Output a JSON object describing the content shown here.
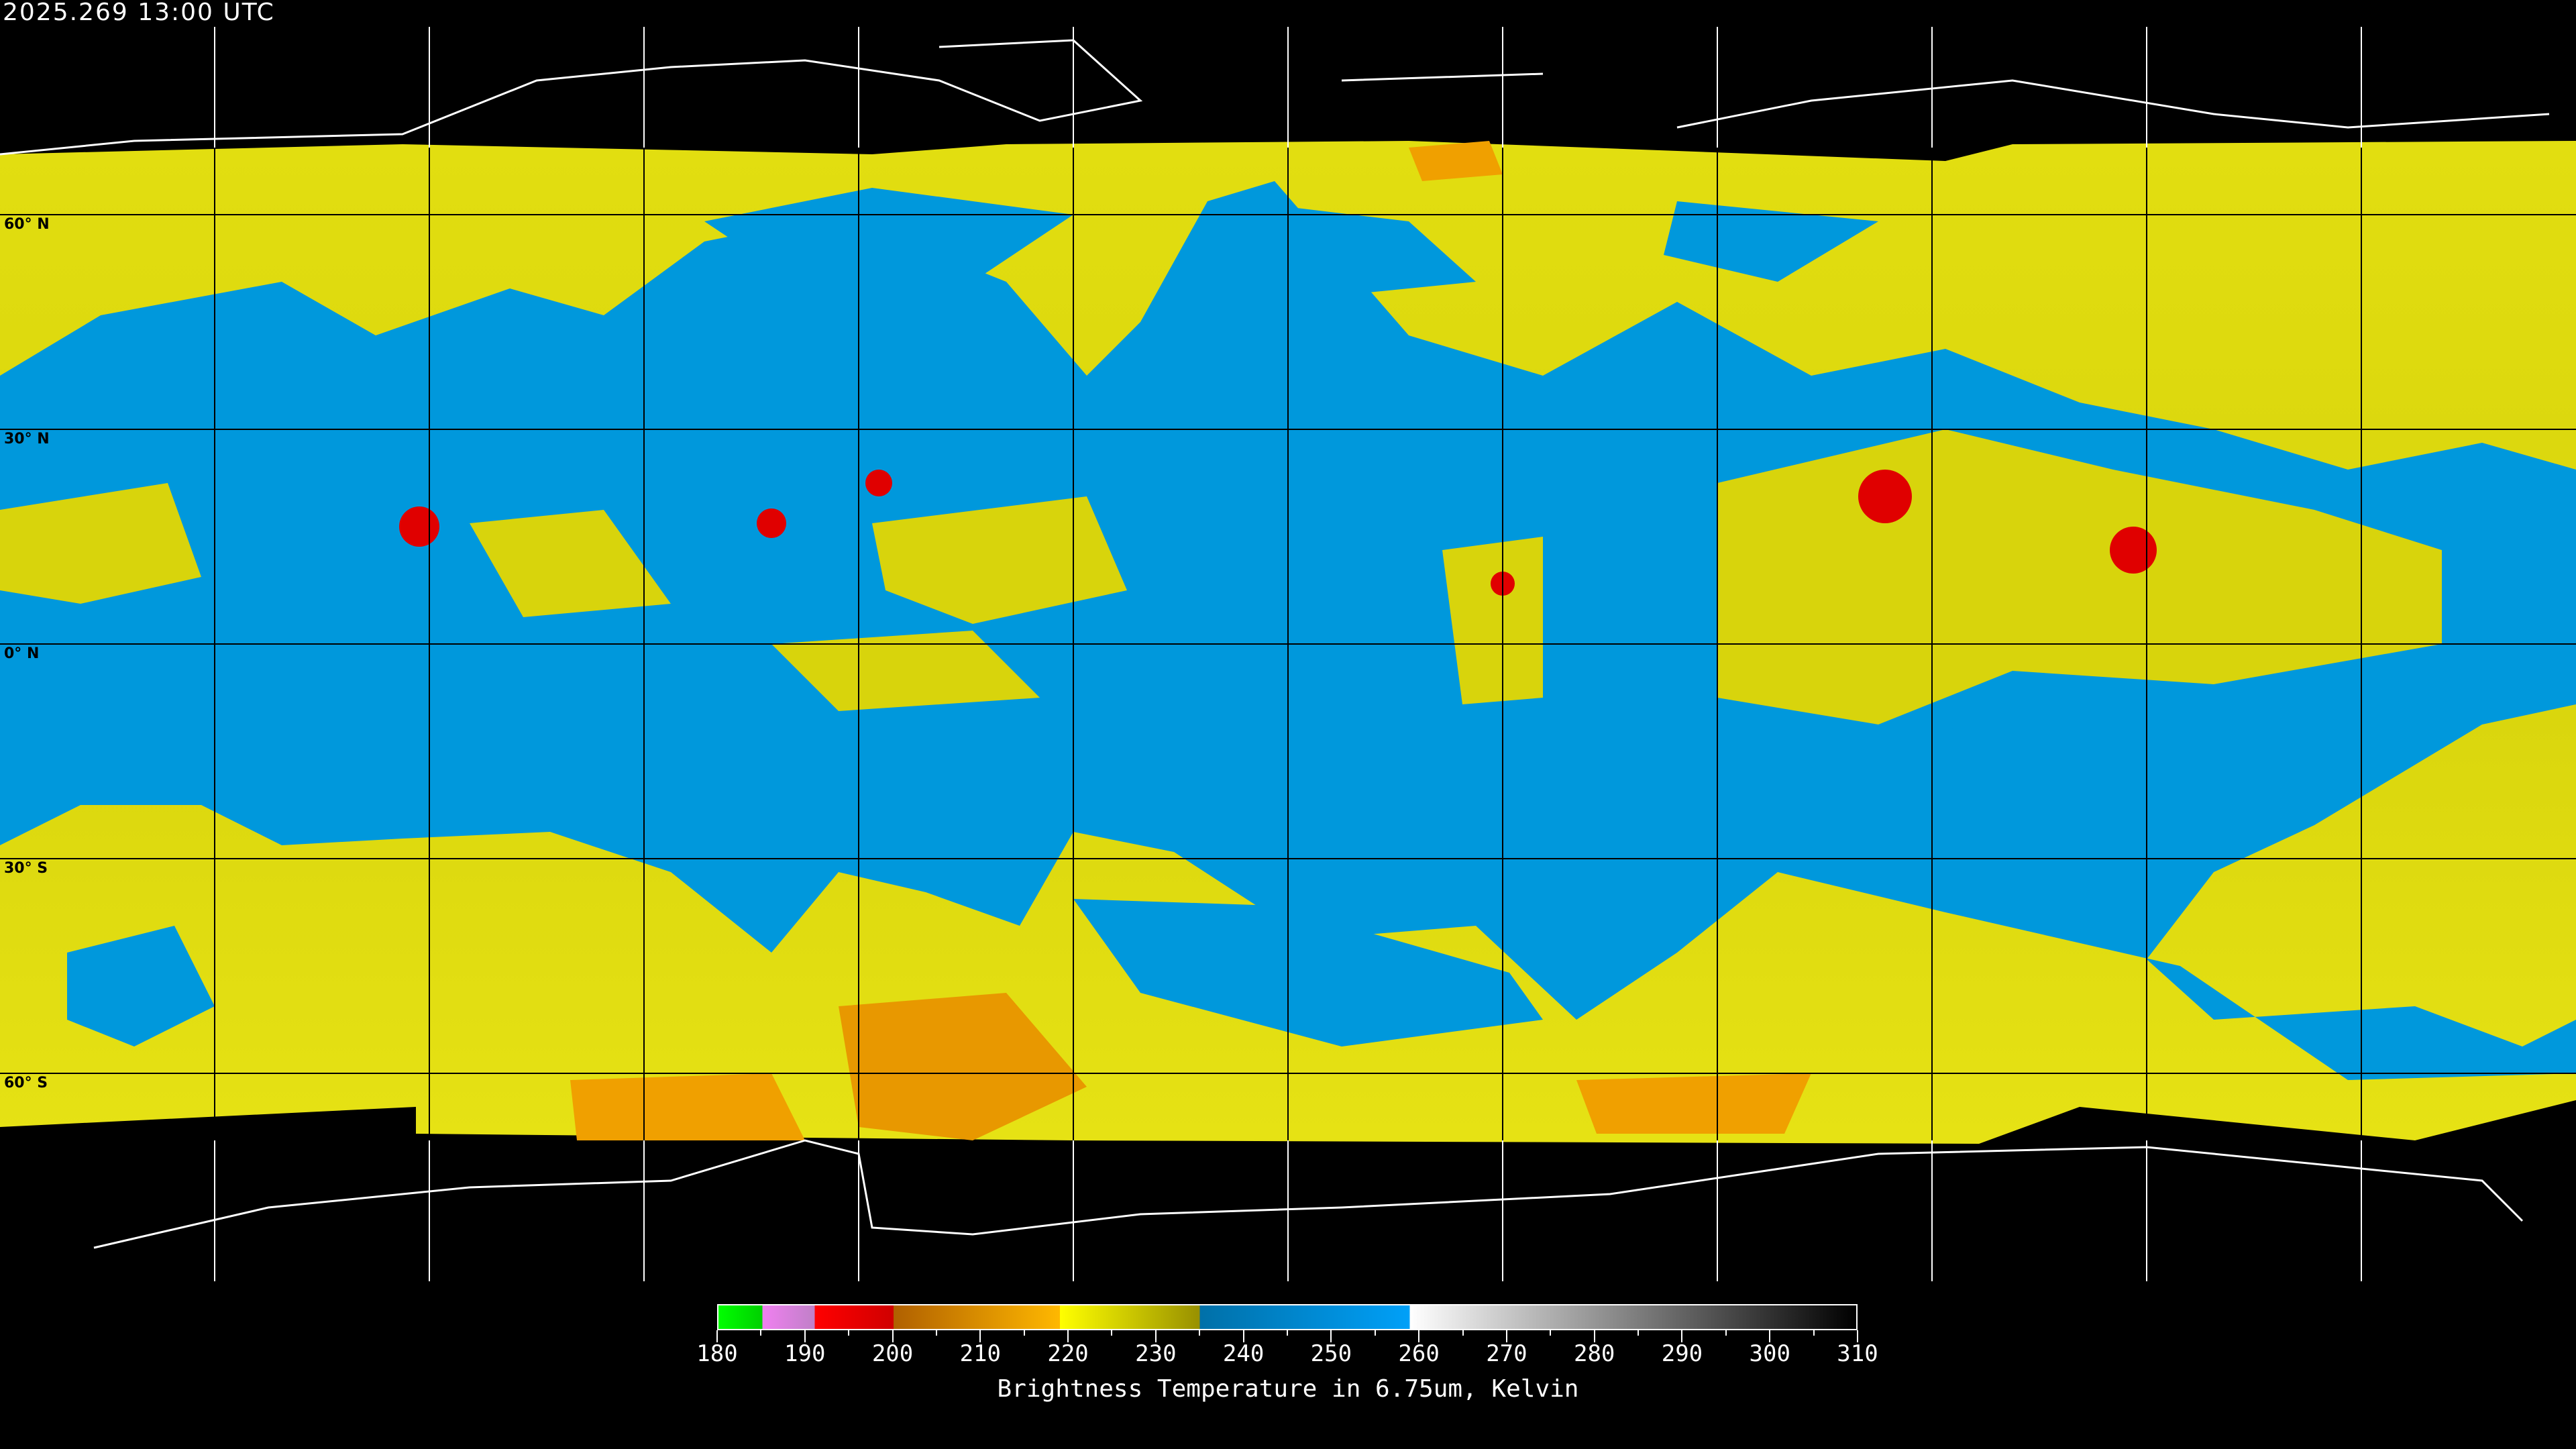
{
  "header": {
    "timestamp": "2025.269 13:00 UTC"
  },
  "map": {
    "projection": "equirectangular",
    "lat_labels": [
      "60° N",
      "30° N",
      "0° N",
      "30° S",
      "60° S"
    ],
    "colors": {
      "ocean_dry": "#0096dc",
      "mid_cloud": "#e6e600",
      "cold_cloud": "#f0a000",
      "very_cold": "#e00000",
      "gridline": "#000000",
      "coastline_on_data": "#000000",
      "coastline_off_data": "#ffffff"
    }
  },
  "colorbar": {
    "title": "Brightness Temperature in 6.75um, Kelvin",
    "min": 180,
    "max": 310,
    "tick_labels": [
      "180",
      "190",
      "200",
      "210",
      "220",
      "230",
      "240",
      "250",
      "260",
      "270",
      "280",
      "290",
      "300",
      "310"
    ],
    "segments": [
      {
        "from": 180,
        "to": 185,
        "colors": [
          "#00ff00",
          "#00d000"
        ]
      },
      {
        "from": 185,
        "to": 191,
        "colors": [
          "#f080f0",
          "#c080c8"
        ]
      },
      {
        "from": 191,
        "to": 200,
        "colors": [
          "#ff0000",
          "#d00000"
        ]
      },
      {
        "from": 200,
        "to": 219,
        "colors": [
          "#b06000",
          "#ffb800"
        ]
      },
      {
        "from": 219,
        "to": 235,
        "colors": [
          "#ffff00",
          "#989000"
        ]
      },
      {
        "from": 235,
        "to": 259,
        "colors": [
          "#0070a8",
          "#00a0f8"
        ]
      },
      {
        "from": 259,
        "to": 310,
        "colors": [
          "#ffffff",
          "#000000"
        ]
      }
    ]
  }
}
